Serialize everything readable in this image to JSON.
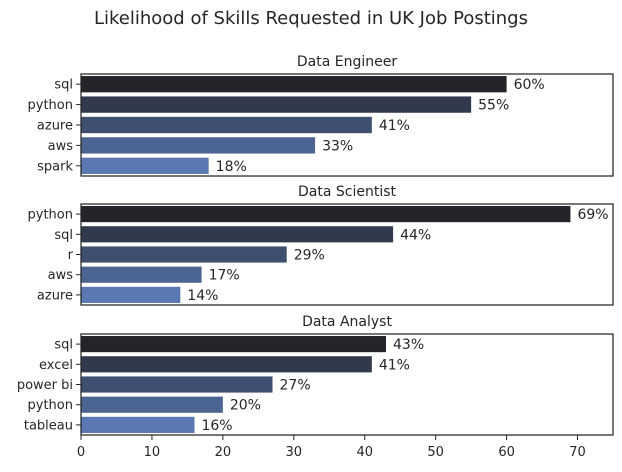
{
  "chart_data": {
    "type": "bar",
    "orientation": "horizontal",
    "title": "Likelihood of Skills Requested in UK Job Postings",
    "value_suffix": "%",
    "xlim": [
      0,
      75
    ],
    "x_ticks": [
      0,
      10,
      20,
      30,
      40,
      50,
      60,
      70
    ],
    "shared_x_axis": true,
    "grid": false,
    "colors": {
      "darkest": "#23252a",
      "lightest": "#5a79b3",
      "frame": "#262626",
      "text": "#262626"
    },
    "panels": [
      {
        "title": "Data Engineer",
        "categories": [
          "sql",
          "python",
          "azure",
          "aws",
          "spark"
        ],
        "values": [
          60,
          55,
          41,
          33,
          18
        ]
      },
      {
        "title": "Data Scientist",
        "categories": [
          "python",
          "sql",
          "r",
          "aws",
          "azure"
        ],
        "values": [
          69,
          44,
          29,
          17,
          14
        ]
      },
      {
        "title": "Data Analyst",
        "categories": [
          "sql",
          "excel",
          "power bi",
          "python",
          "tableau"
        ],
        "values": [
          43,
          41,
          27,
          20,
          16
        ]
      }
    ]
  }
}
